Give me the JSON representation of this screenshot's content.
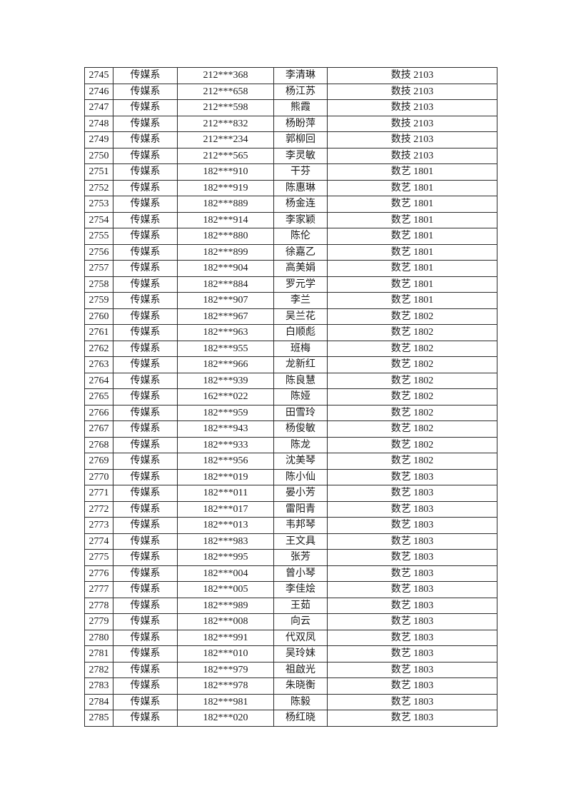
{
  "page": {
    "background_color": "#ffffff",
    "text_color": "#1a1a1a",
    "border_color": "#2b2b2b"
  },
  "table": {
    "rows": [
      [
        "2745",
        "传媒系",
        "212***368",
        "李清琳",
        "数技 2103"
      ],
      [
        "2746",
        "传媒系",
        "212***658",
        "杨江苏",
        "数技 2103"
      ],
      [
        "2747",
        "传媒系",
        "212***598",
        "熊霞",
        "数技 2103"
      ],
      [
        "2748",
        "传媒系",
        "212***832",
        "杨盼萍",
        "数技 2103"
      ],
      [
        "2749",
        "传媒系",
        "212***234",
        "郭柳回",
        "数技 2103"
      ],
      [
        "2750",
        "传媒系",
        "212***565",
        "李灵敏",
        "数技 2103"
      ],
      [
        "2751",
        "传媒系",
        "182***910",
        "干芬",
        "数艺 1801"
      ],
      [
        "2752",
        "传媒系",
        "182***919",
        "陈惠琳",
        "数艺 1801"
      ],
      [
        "2753",
        "传媒系",
        "182***889",
        "杨金连",
        "数艺 1801"
      ],
      [
        "2754",
        "传媒系",
        "182***914",
        "李家颖",
        "数艺 1801"
      ],
      [
        "2755",
        "传媒系",
        "182***880",
        "陈伦",
        "数艺 1801"
      ],
      [
        "2756",
        "传媒系",
        "182***899",
        "徐嘉乙",
        "数艺 1801"
      ],
      [
        "2757",
        "传媒系",
        "182***904",
        "高美娟",
        "数艺 1801"
      ],
      [
        "2758",
        "传媒系",
        "182***884",
        "罗元学",
        "数艺 1801"
      ],
      [
        "2759",
        "传媒系",
        "182***907",
        "李兰",
        "数艺 1801"
      ],
      [
        "2760",
        "传媒系",
        "182***967",
        "吴兰花",
        "数艺 1802"
      ],
      [
        "2761",
        "传媒系",
        "182***963",
        "白顺彪",
        "数艺 1802"
      ],
      [
        "2762",
        "传媒系",
        "182***955",
        "班梅",
        "数艺 1802"
      ],
      [
        "2763",
        "传媒系",
        "182***966",
        "龙新红",
        "数艺 1802"
      ],
      [
        "2764",
        "传媒系",
        "182***939",
        "陈良慧",
        "数艺 1802"
      ],
      [
        "2765",
        "传媒系",
        "162***022",
        "陈娅",
        "数艺 1802"
      ],
      [
        "2766",
        "传媒系",
        "182***959",
        "田雪玲",
        "数艺 1802"
      ],
      [
        "2767",
        "传媒系",
        "182***943",
        "杨俊敏",
        "数艺 1802"
      ],
      [
        "2768",
        "传媒系",
        "182***933",
        "陈龙",
        "数艺 1802"
      ],
      [
        "2769",
        "传媒系",
        "182***956",
        "沈美琴",
        "数艺 1802"
      ],
      [
        "2770",
        "传媒系",
        "182***019",
        "陈小仙",
        "数艺 1803"
      ],
      [
        "2771",
        "传媒系",
        "182***011",
        "晏小芳",
        "数艺 1803"
      ],
      [
        "2772",
        "传媒系",
        "182***017",
        "雷阳青",
        "数艺 1803"
      ],
      [
        "2773",
        "传媒系",
        "182***013",
        "韦邦琴",
        "数艺 1803"
      ],
      [
        "2774",
        "传媒系",
        "182***983",
        "王文具",
        "数艺 1803"
      ],
      [
        "2775",
        "传媒系",
        "182***995",
        "张芳",
        "数艺 1803"
      ],
      [
        "2776",
        "传媒系",
        "182***004",
        "曾小琴",
        "数艺 1803"
      ],
      [
        "2777",
        "传媒系",
        "182***005",
        "李佳烩",
        "数艺 1803"
      ],
      [
        "2778",
        "传媒系",
        "182***989",
        "王茹",
        "数艺 1803"
      ],
      [
        "2779",
        "传媒系",
        "182***008",
        "向云",
        "数艺 1803"
      ],
      [
        "2780",
        "传媒系",
        "182***991",
        "代双凤",
        "数艺 1803"
      ],
      [
        "2781",
        "传媒系",
        "182***010",
        "吴玲妹",
        "数艺 1803"
      ],
      [
        "2782",
        "传媒系",
        "182***979",
        "祖啟光",
        "数艺 1803"
      ],
      [
        "2783",
        "传媒系",
        "182***978",
        "朱晓衡",
        "数艺 1803"
      ],
      [
        "2784",
        "传媒系",
        "182***981",
        "陈毅",
        "数艺 1803"
      ],
      [
        "2785",
        "传媒系",
        "182***020",
        "杨红晓",
        "数艺 1803"
      ]
    ]
  }
}
